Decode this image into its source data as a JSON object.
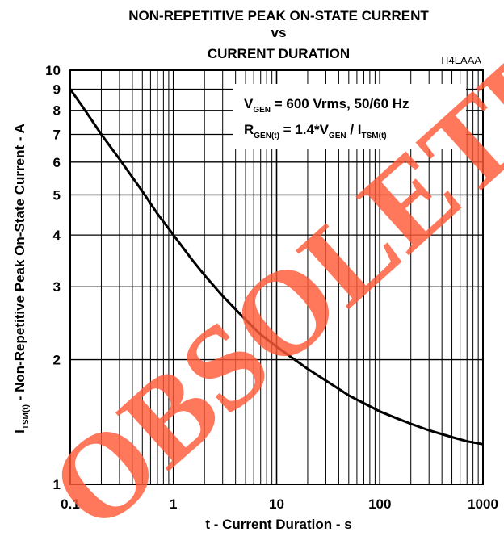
{
  "chart_data": {
    "type": "line",
    "title_lines": [
      "NON-REPETITIVE PEAK ON-STATE CURRENT",
      "vs",
      "CURRENT DURATION"
    ],
    "figure_id": "TI4LAAA",
    "xlabel": "t - Current Duration - s",
    "ylabel": {
      "prefix": "I",
      "sub": "TSM(t)",
      "suffix": "  -  Non-Repetitive Peak On-State Current  -  A"
    },
    "x_scale": "log",
    "y_scale": "log",
    "xlim": [
      0.1,
      1000
    ],
    "ylim": [
      1,
      10
    ],
    "x_ticks": [
      {
        "value": 0.1,
        "label": "0.1"
      },
      {
        "value": 1,
        "label": "1"
      },
      {
        "value": 10,
        "label": "10"
      },
      {
        "value": 100,
        "label": "100"
      },
      {
        "value": 1000,
        "label": "1000"
      }
    ],
    "y_ticks": [
      {
        "value": 1,
        "label": "1"
      },
      {
        "value": 2,
        "label": "2"
      },
      {
        "value": 3,
        "label": "3"
      },
      {
        "value": 4,
        "label": "4"
      },
      {
        "value": 5,
        "label": "5"
      },
      {
        "value": 6,
        "label": "6"
      },
      {
        "value": 7,
        "label": "7"
      },
      {
        "value": 8,
        "label": "8"
      },
      {
        "value": 9,
        "label": "9"
      },
      {
        "value": 10,
        "label": "10"
      }
    ],
    "grid": true,
    "annotation": {
      "line1": {
        "prefix": "V",
        "sub": "GEN",
        "rest": " = 600 Vrms, 50/60 Hz"
      },
      "line2": {
        "prefix": "R",
        "sub1": "GEN(t)",
        "mid": " = 1.4*V",
        "sub2": "GEN",
        "mid2": " / I",
        "sub3": "TSM(t)"
      },
      "placement": "top-right"
    },
    "series": [
      {
        "x": [
          0.1,
          0.13,
          0.16,
          0.2,
          0.3,
          0.5,
          0.7,
          1,
          1.5,
          2,
          3,
          5,
          7,
          10,
          15,
          20,
          30,
          50,
          70,
          100,
          150,
          200,
          300,
          500,
          700,
          1000
        ],
        "y": [
          9.0,
          8.2,
          7.6,
          7.0,
          6.1,
          5.1,
          4.5,
          4.0,
          3.5,
          3.2,
          2.85,
          2.5,
          2.3,
          2.15,
          2.0,
          1.9,
          1.78,
          1.64,
          1.57,
          1.5,
          1.44,
          1.4,
          1.35,
          1.3,
          1.27,
          1.25
        ]
      }
    ],
    "colors": {
      "line": "#000000",
      "grid": "#000000",
      "watermark": "#ff5a38"
    }
  },
  "watermark": {
    "text": "OBSOLETE"
  }
}
